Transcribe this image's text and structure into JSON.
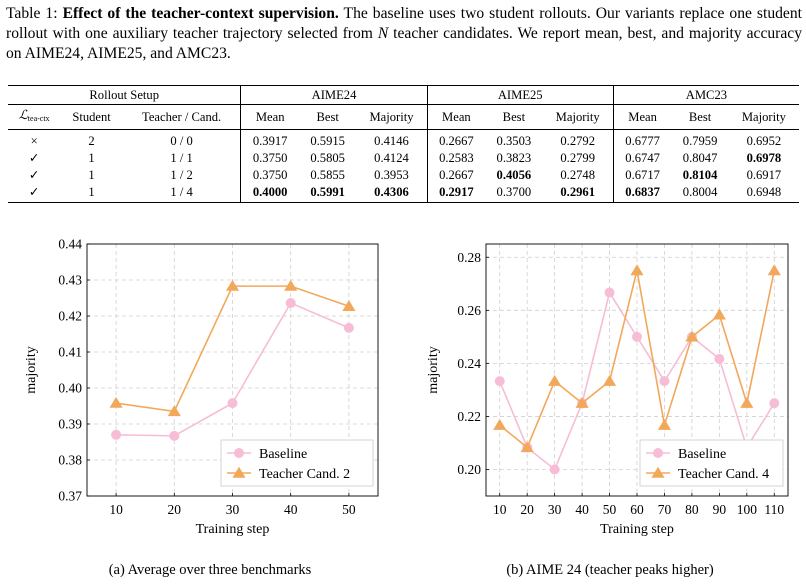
{
  "caption": {
    "label": "Table 1:",
    "title": "Effect of the teacher-context supervision.",
    "text_1": " The baseline uses two student rollouts. Our variants replace one student rollout with one auxiliary teacher trajectory selected from ",
    "n_symbol": "N",
    "text_2": " teacher candidates. We report mean, best, and majority accuracy on AIME24, AIME25, and AMC23."
  },
  "table": {
    "group_headers": [
      "Rollout Setup",
      "AIME24",
      "AIME25",
      "AMC23"
    ],
    "loss_symbol": "ℒ",
    "loss_subscript": "tea-ctx",
    "setup_columns": [
      "Student",
      "Teacher / Cand."
    ],
    "metric_columns": [
      "Mean",
      "Best",
      "Majority",
      "Mean",
      "Best",
      "Majority",
      "Mean",
      "Best",
      "Majority"
    ],
    "rows": [
      {
        "loss": "×",
        "student": "2",
        "cand": "0 / 0",
        "values": [
          "0.3917",
          "0.5915",
          "0.4146",
          "0.2667",
          "0.3503",
          "0.2792",
          "0.6777",
          "0.7959",
          "0.6952"
        ],
        "bold": [
          false,
          false,
          false,
          false,
          false,
          false,
          false,
          false,
          false
        ]
      },
      {
        "loss": "✓",
        "student": "1",
        "cand": "1 / 1",
        "values": [
          "0.3750",
          "0.5805",
          "0.4124",
          "0.2583",
          "0.3823",
          "0.2799",
          "0.6747",
          "0.8047",
          "0.6978"
        ],
        "bold": [
          false,
          false,
          false,
          false,
          false,
          false,
          false,
          false,
          true
        ]
      },
      {
        "loss": "✓",
        "student": "1",
        "cand": "1 / 2",
        "values": [
          "0.3750",
          "0.5855",
          "0.3953",
          "0.2667",
          "0.4056",
          "0.2748",
          "0.6717",
          "0.8104",
          "0.6917"
        ],
        "bold": [
          false,
          false,
          false,
          false,
          true,
          false,
          false,
          true,
          false
        ]
      },
      {
        "loss": "✓",
        "student": "1",
        "cand": "1 / 4",
        "values": [
          "0.4000",
          "0.5991",
          "0.4306",
          "0.2917",
          "0.3700",
          "0.2961",
          "0.6837",
          "0.8004",
          "0.6948"
        ],
        "bold": [
          true,
          true,
          true,
          true,
          false,
          true,
          true,
          false,
          false
        ]
      }
    ]
  },
  "chart_data": [
    {
      "type": "line",
      "caption": "(a) Average over three benchmarks",
      "xlabel": "Training step",
      "ylabel": "majority",
      "x": [
        10,
        20,
        30,
        40,
        50
      ],
      "xticks": [
        "10",
        "20",
        "30",
        "40",
        "50"
      ],
      "yticks": [
        "0.37",
        "0.38",
        "0.39",
        "0.40",
        "0.41",
        "0.42",
        "0.43",
        "0.44"
      ],
      "ylim": [
        0.37,
        0.44
      ],
      "xlim": [
        5,
        55
      ],
      "grid": true,
      "legend": "lower-right",
      "series": [
        {
          "name": "Baseline",
          "color": "#f7bdd6",
          "marker": "circle",
          "values": [
            0.387,
            0.3867,
            0.3958,
            0.4236,
            0.4167
          ]
        },
        {
          "name": "Teacher Cand. 2",
          "color": "#f2a85a",
          "marker": "triangle",
          "values": [
            0.3958,
            0.3935,
            0.4283,
            0.4283,
            0.4227
          ]
        }
      ]
    },
    {
      "type": "line",
      "caption": "(b) AIME 24 (teacher peaks higher)",
      "xlabel": "Training step",
      "ylabel": "majority",
      "x": [
        10,
        20,
        30,
        40,
        50,
        60,
        70,
        80,
        90,
        100,
        110
      ],
      "xticks": [
        "10",
        "20",
        "30",
        "40",
        "50",
        "60",
        "70",
        "80",
        "90",
        "100",
        "110"
      ],
      "yticks": [
        "0.20",
        "0.22",
        "0.24",
        "0.26",
        "0.28"
      ],
      "ylim": [
        0.19,
        0.285
      ],
      "xlim": [
        5,
        115
      ],
      "grid": true,
      "legend": "lower-right",
      "series": [
        {
          "name": "Baseline",
          "color": "#f7bdd6",
          "marker": "circle",
          "values": [
            0.2333,
            0.2083,
            0.2,
            0.225,
            0.2667,
            0.25,
            0.2333,
            0.25,
            0.2417,
            0.2083,
            0.225
          ]
        },
        {
          "name": "Teacher Cand. 4",
          "color": "#f2a85a",
          "marker": "triangle",
          "values": [
            0.2167,
            0.2083,
            0.2333,
            0.225,
            0.2333,
            0.275,
            0.2167,
            0.25,
            0.2583,
            0.225,
            0.275
          ]
        }
      ]
    }
  ]
}
